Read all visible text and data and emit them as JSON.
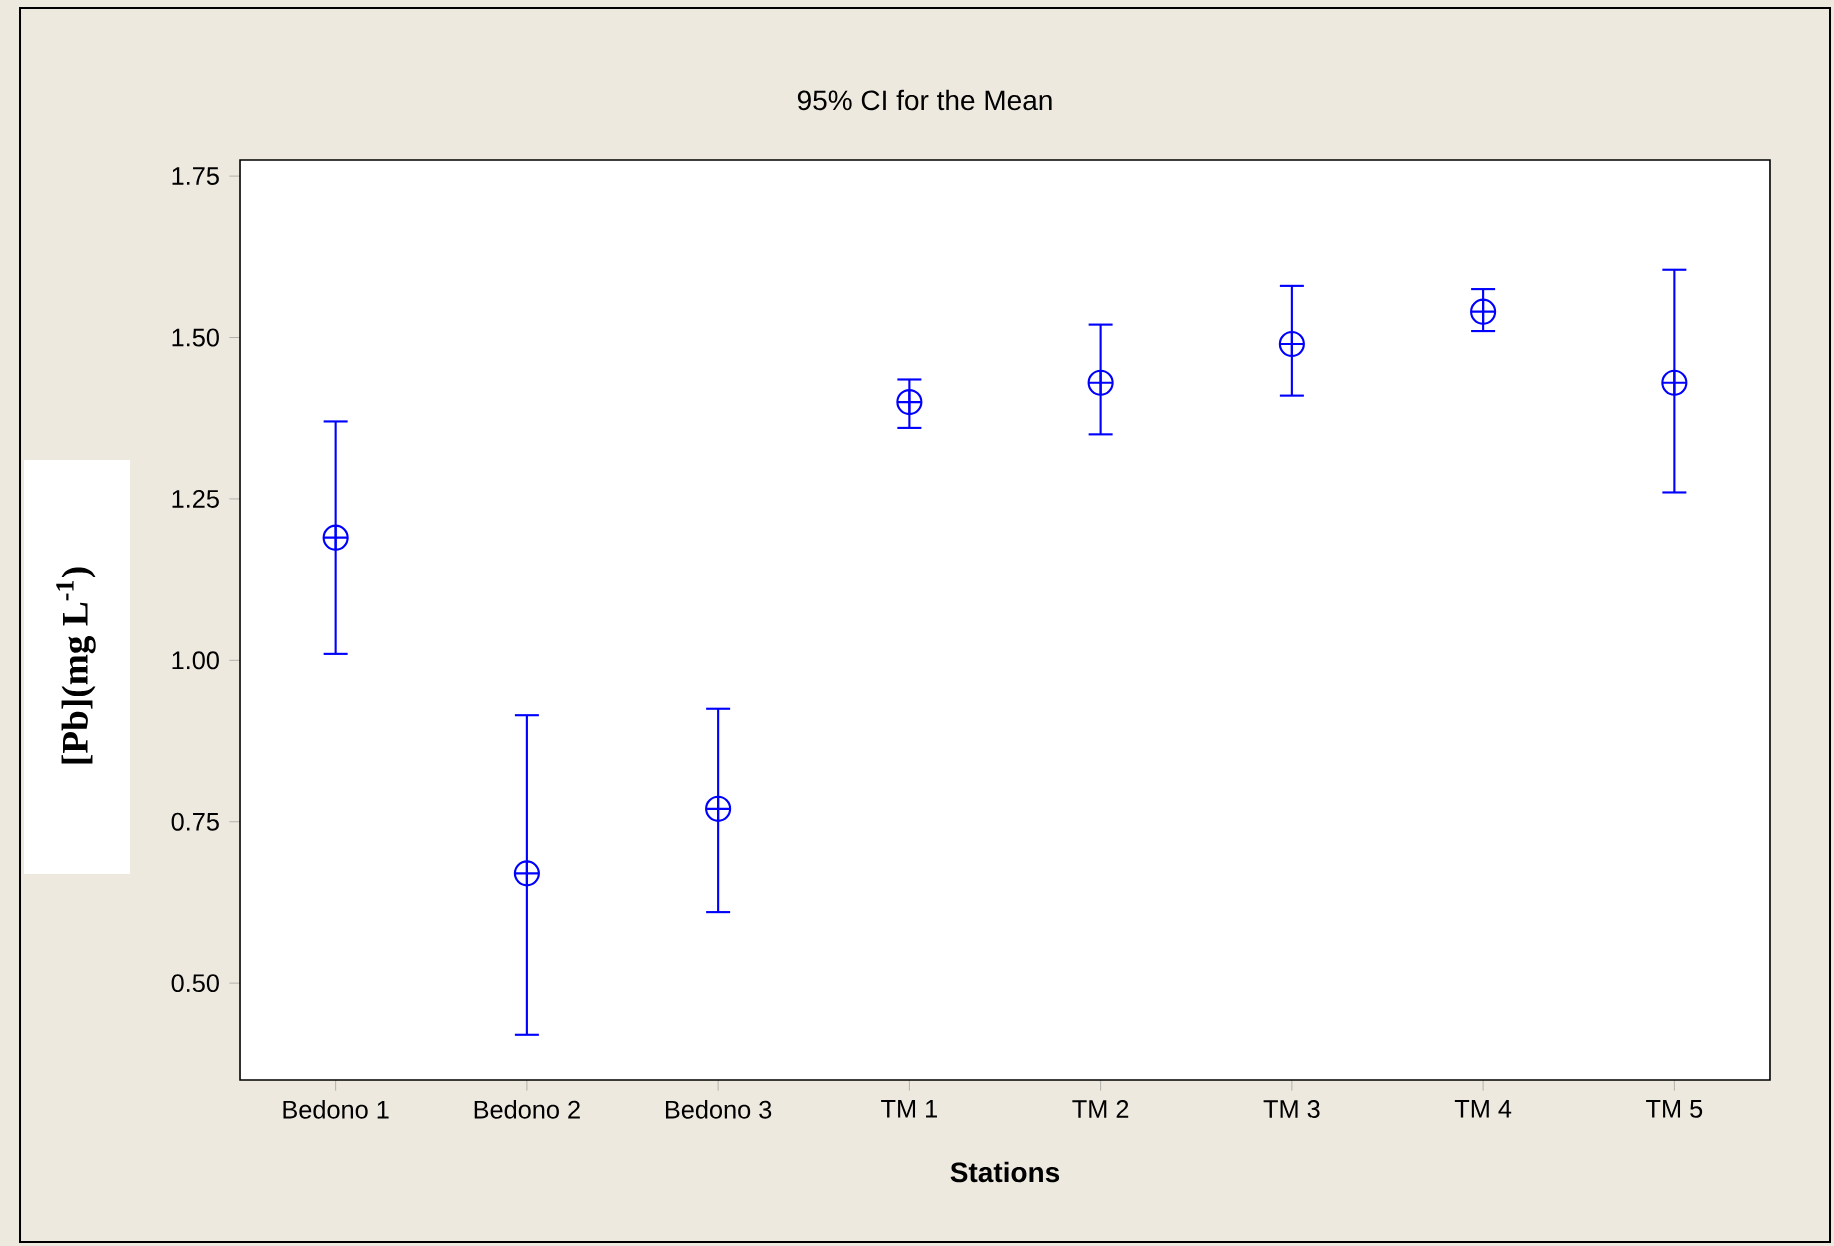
{
  "chart_data": {
    "type": "scatter",
    "title": "95% CI for the Mean",
    "xlabel": "Stations",
    "ylabel": "[Pb](mg L$^{-1}$)",
    "categories": [
      "Bedono 1",
      "Bedono 2",
      "Bedono 3",
      "TM 1",
      "TM 2",
      "TM 3",
      "TM 4",
      "TM 5"
    ],
    "values": [
      1.19,
      0.67,
      0.77,
      1.4,
      1.43,
      1.49,
      1.54,
      1.43
    ],
    "errors": [
      [
        1.01,
        1.37
      ],
      [
        0.42,
        0.915
      ],
      [
        0.61,
        0.925
      ],
      [
        1.36,
        1.435
      ],
      [
        1.35,
        1.52
      ],
      [
        1.41,
        1.58
      ],
      [
        1.51,
        1.575
      ],
      [
        1.26,
        1.605
      ]
    ],
    "color": "#0000ff",
    "grid": false,
    "ylim": [
      0.35,
      1.775
    ],
    "yticks": [
      {
        "value": 0.5,
        "label": "0.50"
      },
      0.75,
      {
        "value": 1.0,
        "label": "1.00"
      },
      1.25,
      {
        "value": 1.5,
        "label": "1.50"
      },
      1.75
    ]
  }
}
